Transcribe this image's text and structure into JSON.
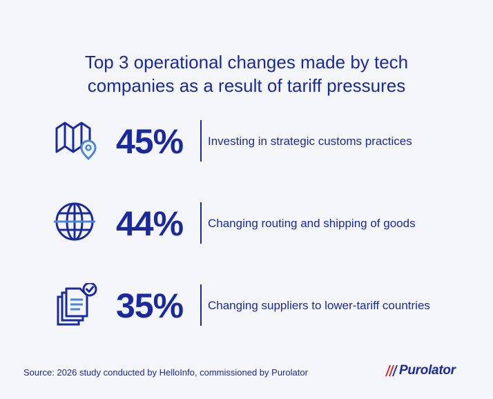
{
  "title": {
    "line1": "Top 3 operational changes made by tech",
    "line2": "companies as a result of tariff pressures"
  },
  "stats": [
    {
      "icon": "map-pin-icon",
      "percent": "45%",
      "label": "Investing in strategic customs practices"
    },
    {
      "icon": "globe-icon",
      "percent": "44%",
      "label": "Changing routing and shipping of goods"
    },
    {
      "icon": "documents-check-icon",
      "percent": "35%",
      "label": "Changing suppliers to lower-tariff countries"
    }
  ],
  "footer": {
    "source": "Source: 2026 study conducted by HelloInfo, commissioned by Purolator",
    "logo_text": "Purolator"
  },
  "colors": {
    "background": "#f3f5f9",
    "primary": "#1a2a9c",
    "icon_accent": "#4a86d8",
    "brand_red": "#e11d2a"
  }
}
